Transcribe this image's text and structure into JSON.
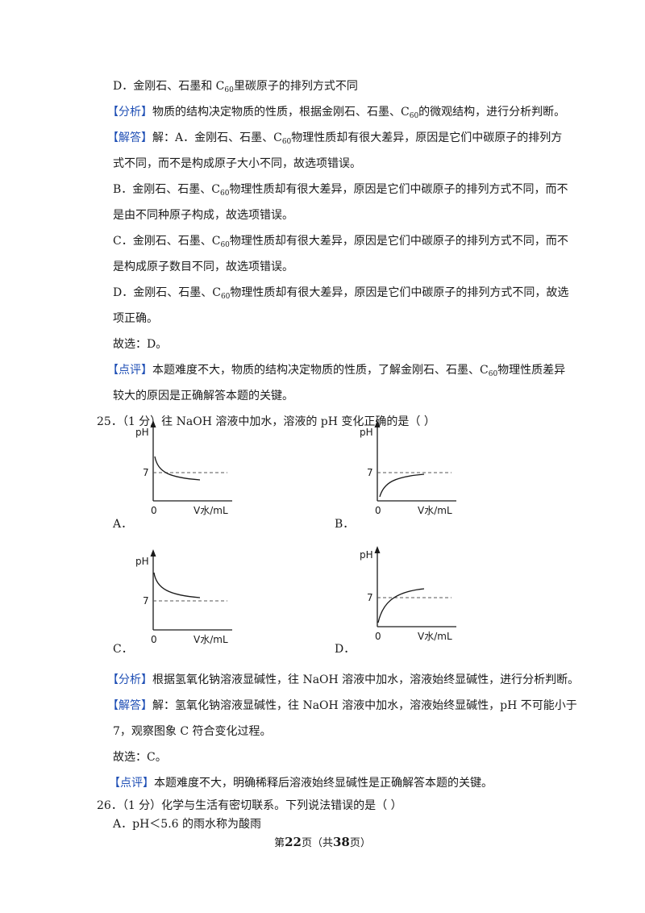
{
  "q24": {
    "option_d_prefix": "D．金刚石、石墨和  C",
    "option_d_suffix": "里碳原子的排列方式不同",
    "sub60": "60",
    "analysis_tag": "【分析】",
    "analysis_a": "物质的结构决定物质的性质，根据金刚石、石墨、C",
    "analysis_b": "的微观结构，进行分析判断。",
    "answer_tag": "【解答】",
    "answer_a1": "解：A．金刚石、石墨、C",
    "answer_a2": "物理性质却有很大差异，原因是它们中碳原子的排列方",
    "answer_a3": "式不同，而不是构成原子大小不同，故选项错误。",
    "answer_b1": "B．金刚石、石墨、C",
    "answer_b2": "物理性质却有很大差异，原因是它们中碳原子的排列方式不同，而不",
    "answer_b3": "是由不同种原子构成，故选项错误。",
    "answer_c1": "C．金刚石、石墨、C",
    "answer_c2": "物理性质却有很大差异，原因是它们中碳原子的排列方式不同，而不",
    "answer_c3": "是构成原子数目不同，故选项错误。",
    "answer_d1": "D．金刚石、石墨、C",
    "answer_d2": "物理性质却有很大差异，原因是它们中碳原子的排列方式不同，故选",
    "answer_d3": "项正确。",
    "choice": "故选：D。",
    "comment_tag": "【点评】",
    "comment_a": "本题难度不大，物质的结构决定物质的性质，了解金刚石、石墨、C",
    "comment_b": "物理性质差异",
    "comment_c": "较大的原因是正确解答本题的关键。"
  },
  "q25": {
    "stem": "25．（1 分）往 NaOH 溶液中加水，溶液的 pH 变化正确的是（        ）",
    "graphs": [
      {
        "label": "A．",
        "y_axis": "pH",
        "x_axis": "V水/mL",
        "origin": "0",
        "ref_value": "7"
      },
      {
        "label": "B．",
        "y_axis": "pH",
        "x_axis": "V水/mL",
        "origin": "0",
        "ref_value": "7"
      },
      {
        "label": "C．",
        "y_axis": "pH",
        "x_axis": "V水/mL",
        "origin": "0",
        "ref_value": "7"
      },
      {
        "label": "D．",
        "y_axis": "pH",
        "x_axis": "V水/mL",
        "origin": "0",
        "ref_value": "7"
      }
    ],
    "analysis_tag": "【分析】",
    "analysis": "根据氢氧化钠溶液显碱性，往 NaOH 溶液中加水，溶液始终显碱性，进行分析判断。",
    "answer_tag": "【解答】",
    "answer_1": "解：氢氧化钠溶液显碱性，往 NaOH 溶液中加水，溶液始终显碱性，pH 不可能小于",
    "answer_2": "7，观察图象 C 符合变化过程。",
    "choice": "故选：C。",
    "comment_tag": "【点评】",
    "comment": "本题难度不大，明确稀释后溶液始终显碱性是正确解答本题的关键。"
  },
  "q26": {
    "stem": "26．（1 分）化学与生活有密切联系。下列说法错误的是（        ）",
    "option_a": "A．pH＜5.6 的雨水称为酸雨"
  },
  "footer": {
    "pre": "第",
    "page": "22",
    "mid": "页（共",
    "total": "38",
    "post": "页）"
  }
}
